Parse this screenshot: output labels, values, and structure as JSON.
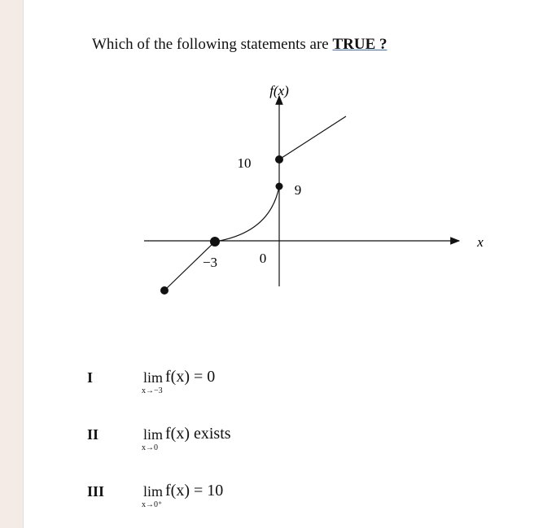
{
  "question": {
    "prefix": "Which of the following statements are ",
    "emphasis": "TRUE ?"
  },
  "graph": {
    "y_label": "f(x)",
    "x_label": "x",
    "label_10": "10",
    "label_9": "9",
    "label_minus3": "−3",
    "label_0": "0"
  },
  "statements": [
    {
      "numeral": "I",
      "lim": "lim",
      "subscript": "x→−3",
      "expression": "f(x) = 0"
    },
    {
      "numeral": "II",
      "lim": "lim",
      "subscript": "x→0",
      "expression": "f(x) exists"
    },
    {
      "numeral": "III",
      "lim": "lim",
      "subscript": "x→0⁺",
      "expression": "f(x) = 10"
    }
  ]
}
